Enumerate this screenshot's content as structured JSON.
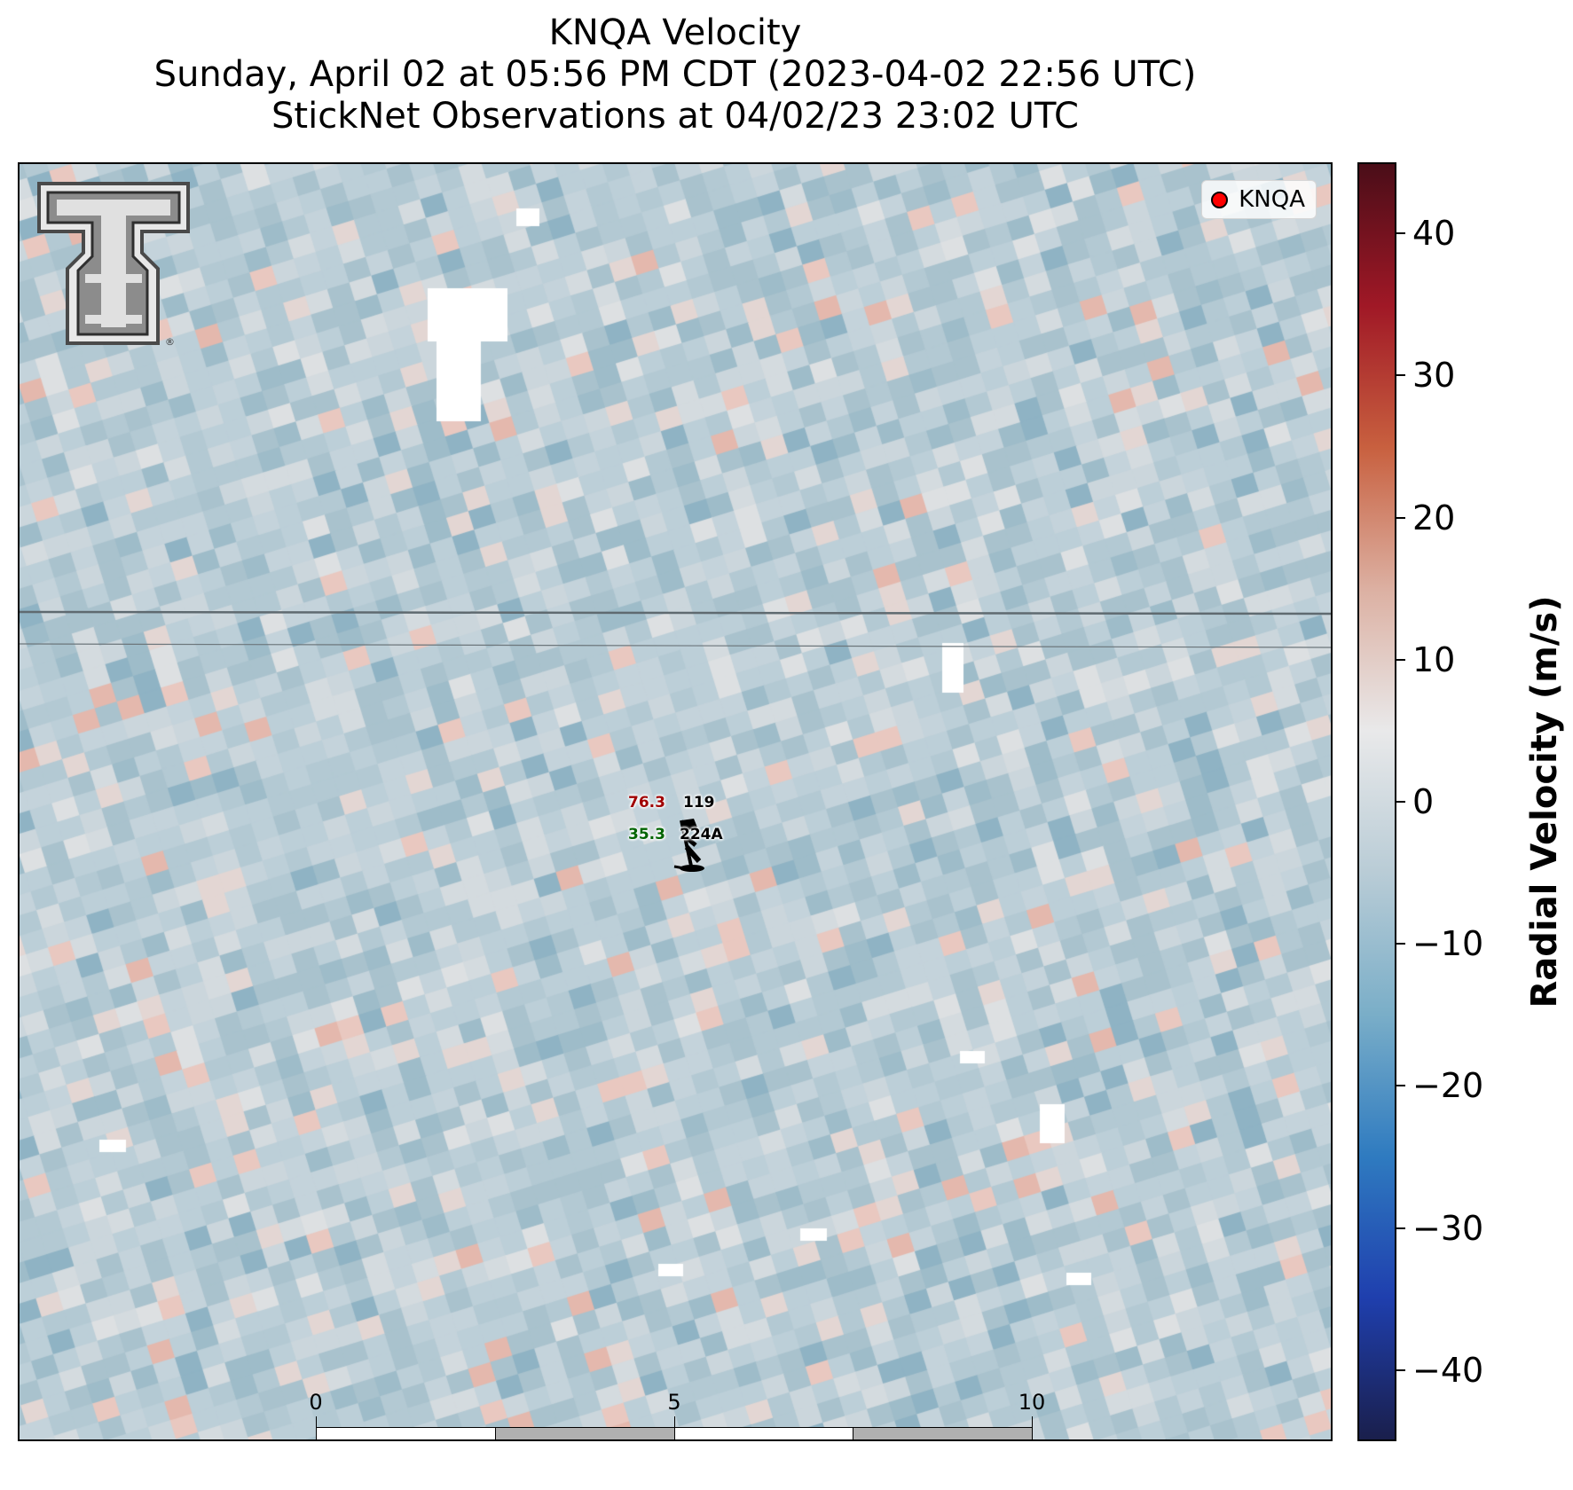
{
  "title": {
    "line1": "KNQA Velocity",
    "line2": "Sunday, April 02 at 05:56 PM CDT (2023-04-02 22:56 UTC)",
    "line3": "StickNet Observations at 04/02/23 23:02 UTC"
  },
  "legend": {
    "label": "KNQA",
    "marker_color": "#ff0000"
  },
  "logo": {
    "name": "Texas Tech Double T",
    "registered_mark": "®"
  },
  "station": {
    "id": "224A",
    "temperature": "76.3",
    "dewpoint": "35.3",
    "pressure_code": "119",
    "temperature_color": "#a00000",
    "dewpoint_color": "#006400"
  },
  "scale_bar": {
    "unit": "km",
    "ticks": [
      "0",
      "5",
      "10"
    ],
    "segment_colors": [
      "#ffffff",
      "#b0b0b0",
      "#ffffff",
      "#b0b0b0"
    ]
  },
  "colorbar": {
    "label": "Radial Velocity (m/s)",
    "range": [
      -45,
      45
    ],
    "ticks": [
      40,
      30,
      20,
      10,
      0,
      -10,
      -20,
      -30,
      -40
    ],
    "tick_labels": [
      "40",
      "30",
      "20",
      "10",
      "0",
      "−10",
      "−20",
      "−30",
      "−40"
    ],
    "colormap_stops": [
      "#1a1f4c",
      "#1f3fae",
      "#2f7bc0",
      "#7aaec8",
      "#b9ccd6",
      "#e9e9ea",
      "#dcb0a2",
      "#c8603f",
      "#a01826",
      "#4a0d18"
    ]
  }
}
